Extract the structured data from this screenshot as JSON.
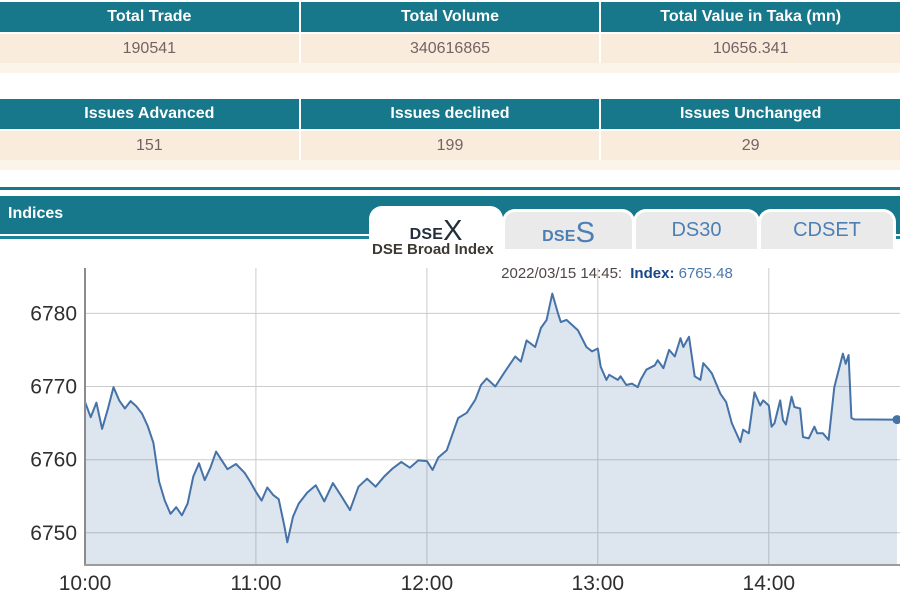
{
  "tables": {
    "trade": {
      "headers": [
        "Total Trade",
        "Total Volume",
        "Total Value in Taka (mn)"
      ],
      "values": [
        "190541",
        "340616865",
        "10656.341"
      ]
    },
    "issues": {
      "headers": [
        "Issues Advanced",
        "Issues declined",
        "Issues Unchanged"
      ],
      "values": [
        "151",
        "199",
        "29"
      ]
    }
  },
  "indices": {
    "title": "Indices",
    "tabs": [
      {
        "label_small": "DSE",
        "label_big": "X",
        "state": "active"
      },
      {
        "label_small": "DSE",
        "label_big": "S",
        "state": "inactive"
      },
      {
        "label": "DS30",
        "state": "inactive"
      },
      {
        "label": "CDSET",
        "state": "inactive"
      }
    ],
    "colors": {
      "bar_teal": "#17778b",
      "tab_active_text": "#232f3b",
      "tab_inactive_text": "#4d7fb5"
    }
  },
  "chart_data": {
    "type": "area",
    "title": "DSE Broad Index",
    "annotation": {
      "datetime": "2022/03/15 14:45:",
      "label": "Index",
      "separator": ": ",
      "value": "6765.48"
    },
    "x_ticks": [
      "10:00",
      "11:00",
      "12:00",
      "13:00",
      "14:00"
    ],
    "x_tick_minutes": [
      0,
      60,
      120,
      180,
      240
    ],
    "y_ticks": [
      6750,
      6760,
      6770,
      6780
    ],
    "x_range_minutes": [
      0,
      285
    ],
    "ylim": [
      6745.6,
      6786.2
    ],
    "grid": true,
    "legend": "none",
    "line_color": "#4572a7",
    "fill_color": "rgba(69,114,167,0.18)",
    "grid_color": "#cccccc",
    "axis_color": "#8c8c8c",
    "tick_text_color": "#2f2f2f",
    "last_value": 6765.48,
    "points": [
      [
        0,
        6767.9
      ],
      [
        2,
        6765.8
      ],
      [
        4,
        6767.8
      ],
      [
        6,
        6764.2
      ],
      [
        8,
        6766.9
      ],
      [
        10,
        6769.9
      ],
      [
        12,
        6768.1
      ],
      [
        14,
        6767.0
      ],
      [
        16,
        6768.0
      ],
      [
        18,
        6767.3
      ],
      [
        20,
        6766.3
      ],
      [
        22,
        6764.6
      ],
      [
        24,
        6762.3
      ],
      [
        26,
        6757.0
      ],
      [
        28,
        6754.4
      ],
      [
        30,
        6752.6
      ],
      [
        32,
        6753.5
      ],
      [
        34,
        6752.4
      ],
      [
        36,
        6754.0
      ],
      [
        38,
        6757.7
      ],
      [
        40,
        6759.5
      ],
      [
        42,
        6757.2
      ],
      [
        44,
        6758.9
      ],
      [
        46,
        6761.1
      ],
      [
        48,
        6759.9
      ],
      [
        50,
        6758.7
      ],
      [
        53,
        6759.4
      ],
      [
        56,
        6758.2
      ],
      [
        58,
        6757.0
      ],
      [
        60,
        6755.6
      ],
      [
        62,
        6754.4
      ],
      [
        64,
        6756.2
      ],
      [
        66,
        6755.2
      ],
      [
        68,
        6754.6
      ],
      [
        70,
        6750.9
      ],
      [
        71,
        6748.7
      ],
      [
        73,
        6752.2
      ],
      [
        75,
        6754.0
      ],
      [
        78,
        6755.5
      ],
      [
        81,
        6756.5
      ],
      [
        84,
        6754.3
      ],
      [
        87,
        6756.8
      ],
      [
        90,
        6755.0
      ],
      [
        93,
        6753.1
      ],
      [
        96,
        6756.3
      ],
      [
        99,
        6757.4
      ],
      [
        102,
        6756.3
      ],
      [
        105,
        6757.7
      ],
      [
        108,
        6758.8
      ],
      [
        111,
        6759.7
      ],
      [
        114,
        6758.9
      ],
      [
        117,
        6759.9
      ],
      [
        120,
        6759.8
      ],
      [
        122,
        6758.6
      ],
      [
        124,
        6760.3
      ],
      [
        127,
        6761.3
      ],
      [
        129,
        6763.5
      ],
      [
        131,
        6765.7
      ],
      [
        134,
        6766.4
      ],
      [
        137,
        6768.2
      ],
      [
        139,
        6770.2
      ],
      [
        141,
        6771.1
      ],
      [
        144,
        6770.0
      ],
      [
        147,
        6771.8
      ],
      [
        151,
        6774.1
      ],
      [
        153,
        6773.4
      ],
      [
        155,
        6776.3
      ],
      [
        158,
        6775.4
      ],
      [
        160,
        6778.0
      ],
      [
        162,
        6779.1
      ],
      [
        164,
        6782.7
      ],
      [
        166,
        6780.0
      ],
      [
        167,
        6778.8
      ],
      [
        169,
        6779.1
      ],
      [
        173,
        6777.7
      ],
      [
        176,
        6775.4
      ],
      [
        178,
        6774.8
      ],
      [
        180,
        6775.2
      ],
      [
        181,
        6772.7
      ],
      [
        183,
        6770.9
      ],
      [
        184,
        6771.6
      ],
      [
        187,
        6770.9
      ],
      [
        188,
        6771.4
      ],
      [
        190,
        6770.2
      ],
      [
        192,
        6770.4
      ],
      [
        194,
        6769.9
      ],
      [
        195,
        6770.9
      ],
      [
        197,
        6772.3
      ],
      [
        200,
        6772.9
      ],
      [
        201,
        6773.6
      ],
      [
        203,
        6772.5
      ],
      [
        205,
        6775.0
      ],
      [
        207,
        6774.1
      ],
      [
        209,
        6776.6
      ],
      [
        210,
        6775.4
      ],
      [
        212,
        6776.8
      ],
      [
        214,
        6771.4
      ],
      [
        216,
        6770.9
      ],
      [
        217,
        6773.2
      ],
      [
        219,
        6772.3
      ],
      [
        220,
        6771.8
      ],
      [
        223,
        6769.0
      ],
      [
        225,
        6767.9
      ],
      [
        227,
        6765.0
      ],
      [
        230,
        6762.4
      ],
      [
        231,
        6764.1
      ],
      [
        233,
        6763.6
      ],
      [
        235,
        6769.2
      ],
      [
        237,
        6767.4
      ],
      [
        238,
        6768.1
      ],
      [
        240,
        6767.4
      ],
      [
        241,
        6764.5
      ],
      [
        242,
        6765.0
      ],
      [
        244,
        6768.1
      ],
      [
        245,
        6765.4
      ],
      [
        246,
        6764.8
      ],
      [
        248,
        6768.6
      ],
      [
        249,
        6767.2
      ],
      [
        251,
        6767.0
      ],
      [
        252,
        6763.1
      ],
      [
        254,
        6762.9
      ],
      [
        256,
        6764.5
      ],
      [
        257,
        6763.6
      ],
      [
        259,
        6763.6
      ],
      [
        261,
        6762.7
      ],
      [
        263,
        6769.9
      ],
      [
        266,
        6774.5
      ],
      [
        267,
        6773.1
      ],
      [
        268,
        6774.3
      ],
      [
        269,
        6765.7
      ],
      [
        270,
        6765.5
      ],
      [
        285,
        6765.48
      ]
    ]
  }
}
